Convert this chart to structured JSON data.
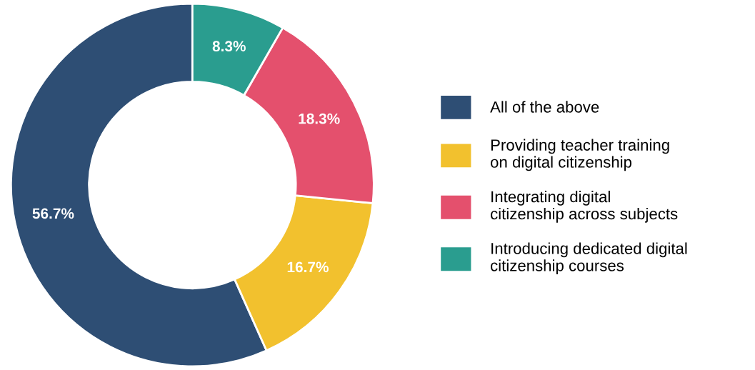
{
  "chart_data": {
    "type": "donut",
    "categories": [
      "All of the above",
      "Providing teacher training\non digital citizenship",
      "Integrating digital\ncitizenship across subjects",
      "Introducing dedicated digital\ncitizenship courses"
    ],
    "values": [
      56.7,
      16.7,
      18.3,
      8.3
    ],
    "value_labels": [
      "56.7%",
      "16.7%",
      "18.3%",
      "8.3%"
    ],
    "colors": [
      "#2e4e74",
      "#f2c12e",
      "#e4506d",
      "#2a9d8f"
    ],
    "legend": "right"
  }
}
